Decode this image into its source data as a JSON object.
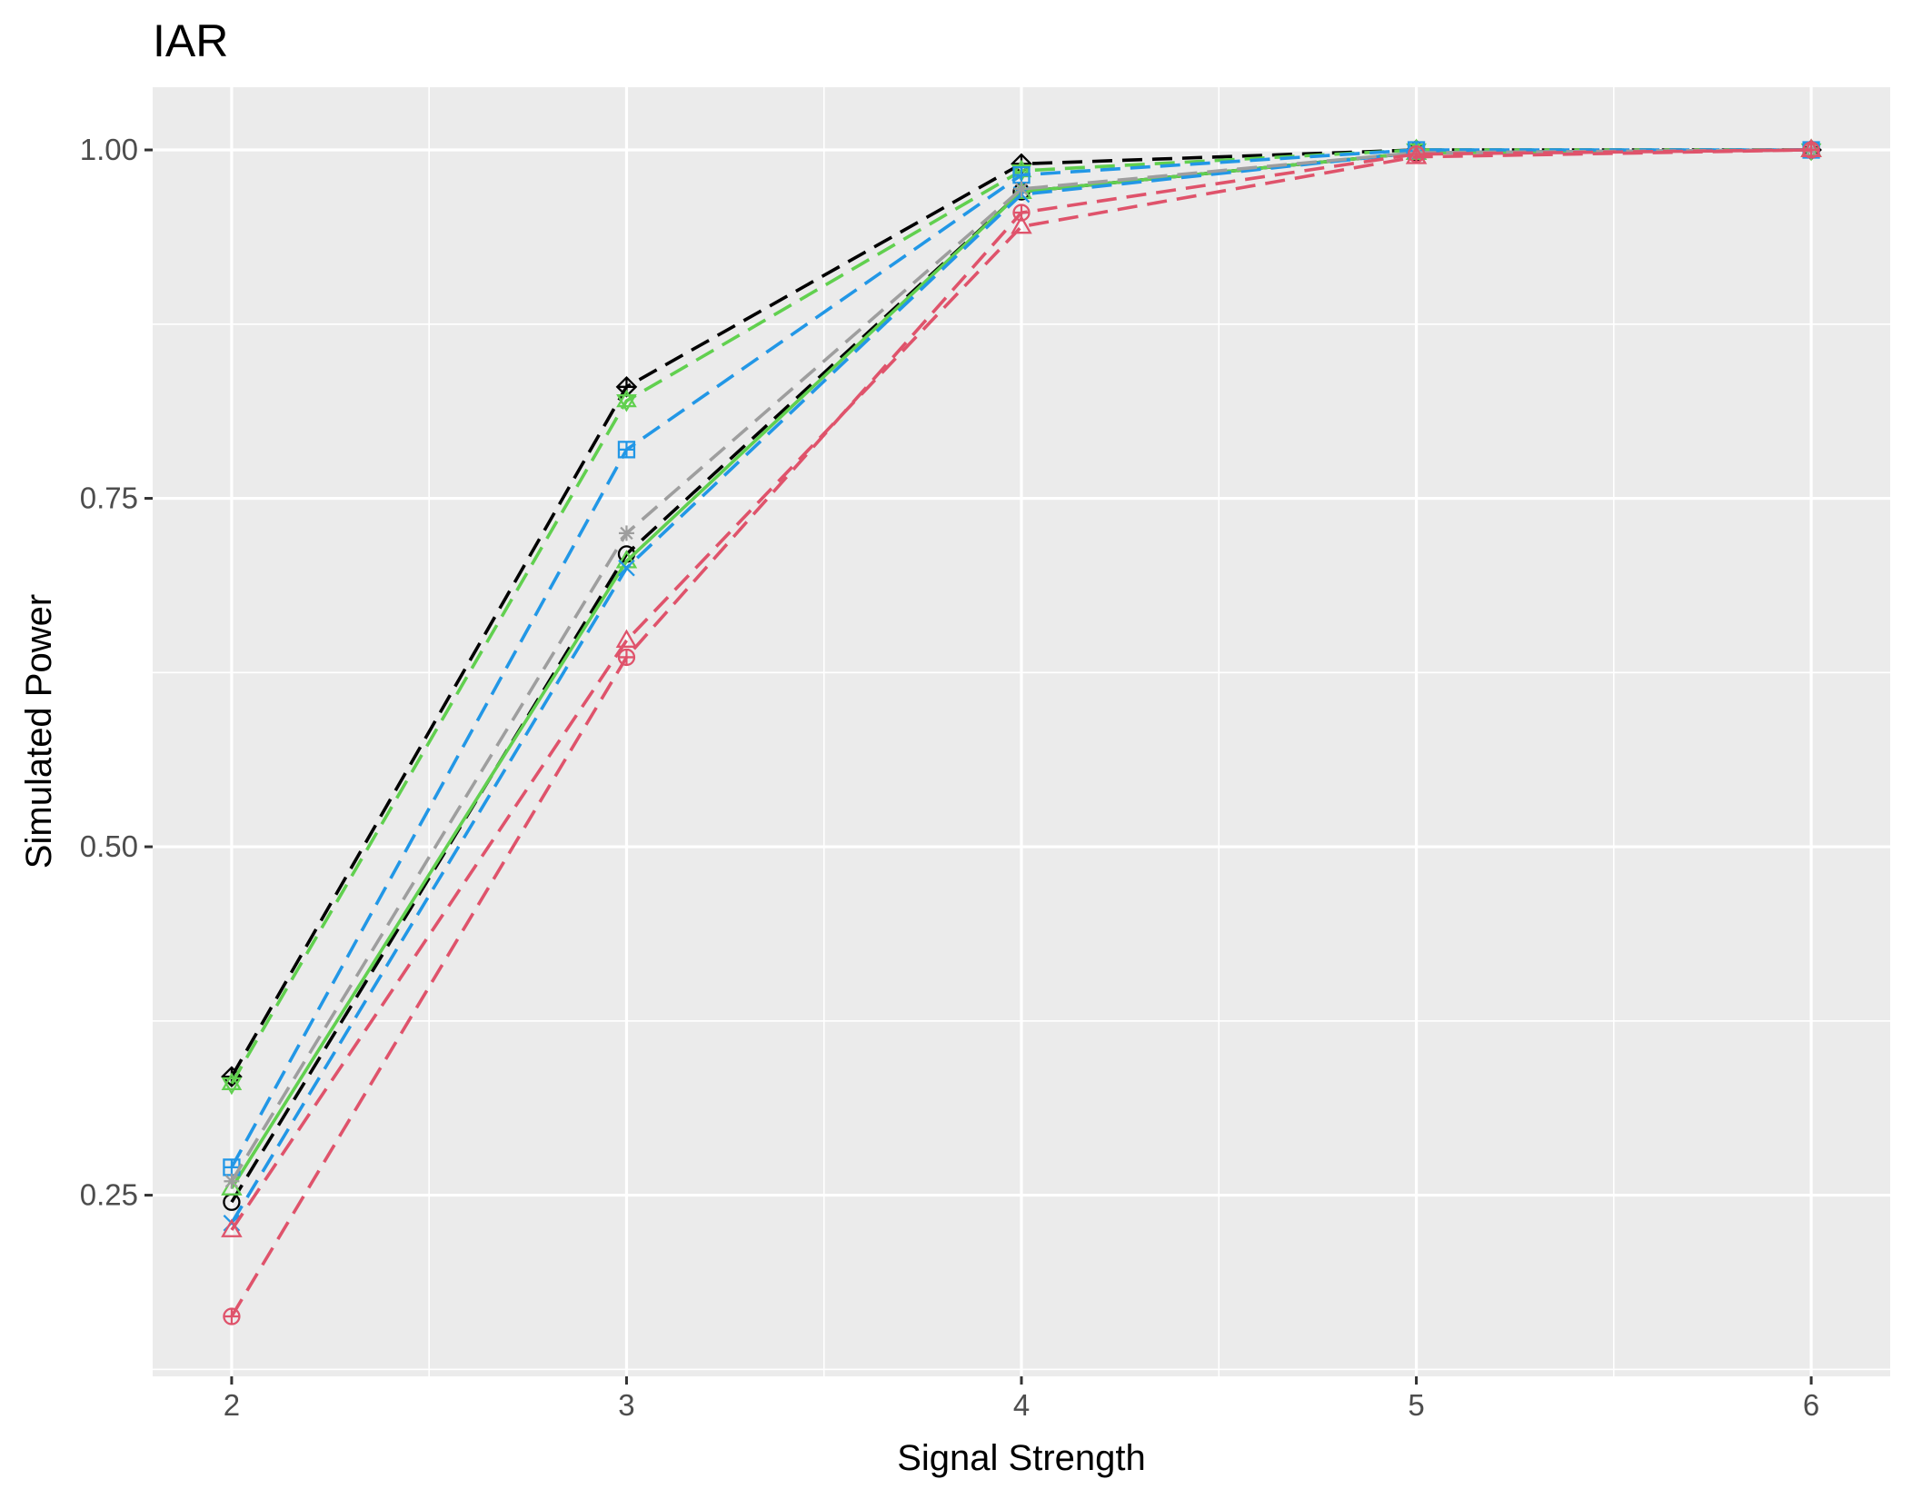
{
  "chart_data": {
    "type": "line",
    "title": "IAR",
    "xlabel": "Signal Strength",
    "ylabel": "Simulated Power",
    "x": [
      2,
      3,
      4,
      5,
      6
    ],
    "xlim": [
      1.8,
      6.2
    ],
    "ylim": [
      0.12,
      1.045
    ],
    "x_ticks": [
      "2",
      "3",
      "4",
      "5",
      "6"
    ],
    "y_ticks": [
      "0.25",
      "0.50",
      "0.75",
      "1.00"
    ],
    "y_tick_values": [
      0.25,
      0.5,
      0.75,
      1.0
    ],
    "grid": true,
    "legend": "none",
    "series": [
      {
        "color": "#000000",
        "marker": "diamond-plus",
        "dashed": true,
        "values": [
          0.335,
          0.83,
          0.99,
          1.0,
          1.0
        ]
      },
      {
        "color": "#000000",
        "marker": "circle",
        "dashed": true,
        "values": [
          0.245,
          0.71,
          0.97,
          0.998,
          1.0
        ]
      },
      {
        "color": "#61d04f",
        "marker": "star",
        "dashed": true,
        "values": [
          0.33,
          0.82,
          0.985,
          1.0,
          1.0
        ]
      },
      {
        "color": "#61d04f",
        "marker": "triangle",
        "dashed": false,
        "values": [
          0.255,
          0.705,
          0.97,
          0.998,
          1.0
        ]
      },
      {
        "color": "#2297e6",
        "marker": "square-plus",
        "dashed": true,
        "values": [
          0.27,
          0.785,
          0.982,
          1.0,
          1.0
        ]
      },
      {
        "color": "#2297e6",
        "marker": "x",
        "dashed": true,
        "values": [
          0.23,
          0.7,
          0.968,
          0.998,
          1.0
        ]
      },
      {
        "color": "#9e9e9e",
        "marker": "asterisk",
        "dashed": true,
        "values": [
          0.26,
          0.725,
          0.972,
          0.998,
          1.0
        ]
      },
      {
        "color": "#df536b",
        "marker": "triangle",
        "dashed": true,
        "values": [
          0.225,
          0.648,
          0.945,
          0.995,
          1.0
        ]
      },
      {
        "color": "#df536b",
        "marker": "circle-plus",
        "dashed": true,
        "values": [
          0.163,
          0.636,
          0.955,
          0.997,
          1.0
        ]
      }
    ]
  }
}
